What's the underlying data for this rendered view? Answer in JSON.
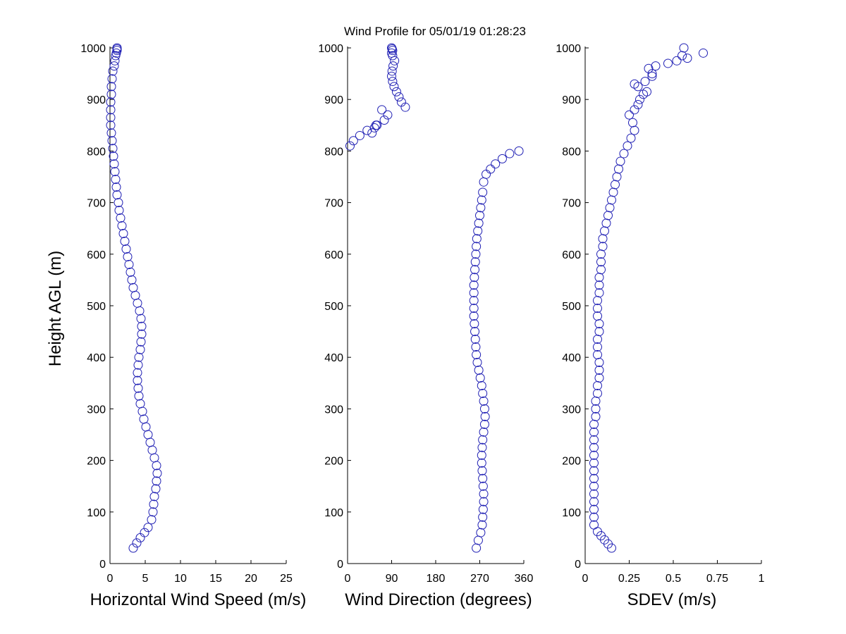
{
  "title": "Wind Profile for  05/01/19 01:28:23",
  "chart_data": [
    {
      "type": "scatter",
      "xlabel": "Horizontal Wind Speed (m/s)",
      "ylabel": "Height AGL (m)",
      "xlim": [
        0,
        25
      ],
      "ylim": [
        0,
        1000
      ],
      "xticks": [
        "0",
        "5",
        "10",
        "15",
        "20",
        "25"
      ],
      "xtick_values": [
        0,
        5,
        10,
        15,
        20,
        25
      ],
      "yticks": [
        "0",
        "100",
        "200",
        "300",
        "400",
        "500",
        "600",
        "700",
        "800",
        "900",
        "1000"
      ],
      "ytick_values": [
        0,
        100,
        200,
        300,
        400,
        500,
        600,
        700,
        800,
        900,
        1000
      ],
      "grid": false,
      "marker": "open-circle",
      "color": "#1f1fb4",
      "series": [
        {
          "x": [
            3.3,
            3.8,
            4.3,
            4.9,
            5.4,
            5.9,
            6.1,
            6.2,
            6.3,
            6.5,
            6.6,
            6.7,
            6.6,
            6.3,
            6.0,
            5.7,
            5.4,
            5.1,
            4.8,
            4.6,
            4.3,
            4.1,
            4.0,
            3.9,
            3.9,
            4.0,
            4.1,
            4.3,
            4.4,
            4.5,
            4.5,
            4.4,
            4.2,
            3.9,
            3.6,
            3.3,
            3.1,
            2.9,
            2.7,
            2.5,
            2.3,
            2.1,
            1.9,
            1.7,
            1.5,
            1.3,
            1.2,
            1.0,
            0.9,
            0.8,
            0.7,
            0.6,
            0.5,
            0.4,
            0.3,
            0.2,
            0.1,
            0.1,
            0.1,
            0.1,
            0.2,
            0.2,
            0.3,
            0.4,
            0.6,
            0.7,
            0.8,
            0.9,
            1.0,
            1.0,
            1.0
          ],
          "y": [
            30,
            40,
            50,
            60,
            70,
            85,
            100,
            115,
            130,
            145,
            160,
            175,
            190,
            205,
            220,
            235,
            250,
            265,
            280,
            295,
            310,
            325,
            340,
            355,
            370,
            385,
            400,
            415,
            430,
            445,
            460,
            475,
            490,
            505,
            520,
            535,
            550,
            565,
            580,
            595,
            610,
            625,
            640,
            655,
            670,
            685,
            700,
            715,
            730,
            745,
            760,
            775,
            790,
            805,
            820,
            835,
            850,
            865,
            880,
            895,
            910,
            925,
            940,
            955,
            965,
            975,
            985,
            990,
            995,
            998,
            1000
          ]
        }
      ]
    },
    {
      "type": "scatter",
      "xlabel": "Wind Direction (degrees)",
      "ylabel": "",
      "xlim": [
        0,
        360
      ],
      "ylim": [
        0,
        1000
      ],
      "xticks": [
        "0",
        "90",
        "180",
        "270",
        "360"
      ],
      "xtick_values": [
        0,
        90,
        180,
        270,
        360
      ],
      "yticks": [
        "0",
        "100",
        "200",
        "300",
        "400",
        "500",
        "600",
        "700",
        "800",
        "900",
        "1000"
      ],
      "ytick_values": [
        0,
        100,
        200,
        300,
        400,
        500,
        600,
        700,
        800,
        900,
        1000
      ],
      "grid": false,
      "marker": "open-circle",
      "color": "#1f1fb4",
      "series": [
        {
          "x": [
            263,
            267,
            272,
            275,
            276,
            277,
            278,
            278,
            277,
            276,
            275,
            274,
            274,
            275,
            276,
            278,
            280,
            281,
            280,
            278,
            276,
            274,
            271,
            268,
            265,
            263,
            262,
            261,
            260,
            259,
            258,
            258,
            258,
            258,
            258,
            259,
            260,
            261,
            262,
            263,
            264,
            266,
            268,
            270,
            272,
            274,
            276,
            278,
            283,
            292,
            302,
            316,
            331,
            350,
            5,
            12,
            25,
            40,
            58,
            75,
            82,
            70,
            60,
            55,
            50,
            118,
            110,
            105,
            100,
            95,
            92,
            90,
            91,
            93,
            96,
            92,
            90,
            92,
            91,
            90
          ],
          "y": [
            30,
            45,
            60,
            75,
            90,
            105,
            120,
            135,
            150,
            165,
            180,
            195,
            210,
            225,
            240,
            255,
            270,
            285,
            300,
            315,
            330,
            345,
            360,
            375,
            390,
            405,
            420,
            435,
            450,
            465,
            480,
            495,
            510,
            525,
            540,
            555,
            570,
            585,
            600,
            615,
            630,
            645,
            660,
            675,
            690,
            705,
            720,
            740,
            755,
            765,
            775,
            785,
            795,
            800,
            810,
            820,
            830,
            840,
            850,
            860,
            870,
            880,
            850,
            845,
            835,
            885,
            895,
            905,
            915,
            925,
            935,
            945,
            955,
            965,
            975,
            985,
            990,
            995,
            998,
            1000
          ]
        }
      ]
    },
    {
      "type": "scatter",
      "xlabel": "SDEV  (m/s)",
      "ylabel": "",
      "xlim": [
        0,
        1
      ],
      "ylim": [
        0,
        1000
      ],
      "xticks": [
        "0",
        "0.25",
        "0.5",
        "0.75",
        "1"
      ],
      "xtick_values": [
        0,
        0.25,
        0.5,
        0.75,
        1
      ],
      "yticks": [
        "0",
        "100",
        "200",
        "300",
        "400",
        "500",
        "600",
        "700",
        "800",
        "900",
        "1000"
      ],
      "ytick_values": [
        0,
        100,
        200,
        300,
        400,
        500,
        600,
        700,
        800,
        900,
        1000
      ],
      "grid": false,
      "marker": "open-circle",
      "color": "#1f1fb4",
      "series": [
        {
          "x": [
            0.15,
            0.13,
            0.11,
            0.09,
            0.07,
            0.05,
            0.05,
            0.05,
            0.05,
            0.05,
            0.05,
            0.05,
            0.05,
            0.05,
            0.05,
            0.05,
            0.05,
            0.05,
            0.05,
            0.06,
            0.06,
            0.06,
            0.07,
            0.07,
            0.08,
            0.08,
            0.08,
            0.07,
            0.07,
            0.07,
            0.08,
            0.08,
            0.07,
            0.07,
            0.07,
            0.08,
            0.08,
            0.08,
            0.09,
            0.09,
            0.09,
            0.1,
            0.1,
            0.11,
            0.12,
            0.13,
            0.14,
            0.15,
            0.16,
            0.17,
            0.18,
            0.19,
            0.2,
            0.22,
            0.24,
            0.26,
            0.28,
            0.27,
            0.25,
            0.28,
            0.3,
            0.31,
            0.33,
            0.35,
            0.38,
            0.34,
            0.3,
            0.28,
            0.36,
            0.4,
            0.38,
            0.47,
            0.52,
            0.58,
            0.55,
            0.67,
            0.56
          ],
          "y": [
            30,
            38,
            46,
            54,
            62,
            75,
            90,
            105,
            120,
            135,
            150,
            165,
            180,
            195,
            210,
            225,
            240,
            255,
            270,
            285,
            300,
            315,
            330,
            345,
            360,
            375,
            390,
            405,
            420,
            435,
            450,
            465,
            480,
            495,
            510,
            525,
            540,
            555,
            570,
            585,
            600,
            615,
            630,
            645,
            660,
            675,
            690,
            705,
            720,
            735,
            750,
            765,
            780,
            795,
            810,
            825,
            840,
            855,
            870,
            880,
            890,
            900,
            910,
            915,
            945,
            935,
            925,
            930,
            960,
            965,
            950,
            970,
            975,
            980,
            985,
            990,
            1000
          ]
        }
      ]
    }
  ]
}
